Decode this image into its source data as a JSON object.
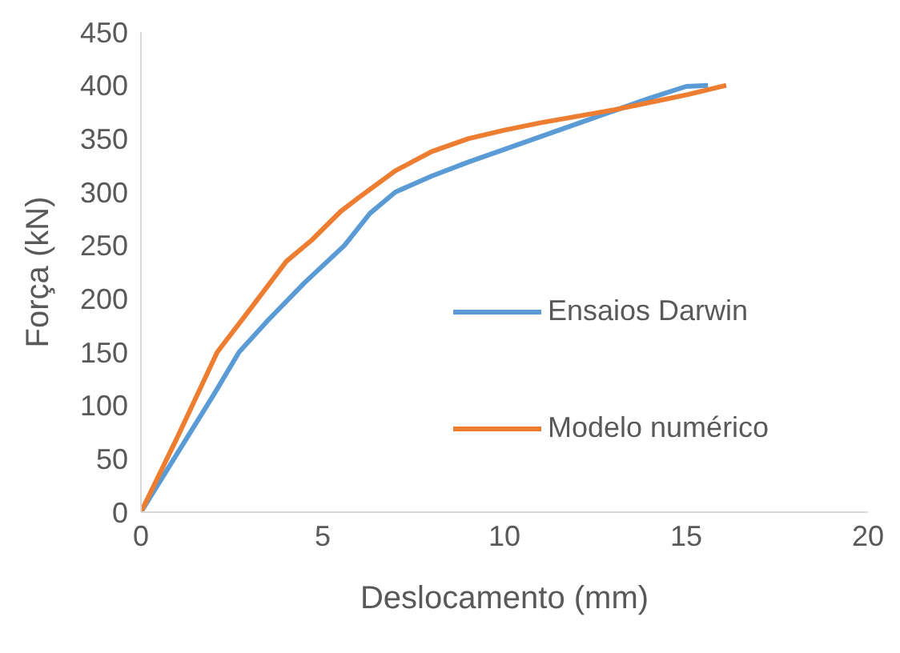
{
  "chart_data": {
    "type": "line",
    "xlabel": "Deslocamento (mm)",
    "ylabel": "Força (kN)",
    "xlim": [
      0,
      20
    ],
    "xticks": [
      0,
      5,
      10,
      15,
      20
    ],
    "ylim": [
      0,
      450
    ],
    "yticks": [
      0,
      50,
      100,
      150,
      200,
      250,
      300,
      350,
      400,
      450
    ],
    "grid": false,
    "legend": "right",
    "marker": "none",
    "line_style": "solid",
    "series": [
      {
        "name": "Ensaios Darwin",
        "color": "#5b9bd5",
        "x": [
          0,
          1,
          2,
          2.7,
          3.5,
          4.5,
          5.6,
          6.3,
          7,
          8,
          9,
          10,
          11,
          12,
          13,
          14,
          15,
          15.6
        ],
        "values": [
          0,
          55,
          110,
          150,
          180,
          215,
          250,
          280,
          300,
          315,
          328,
          340,
          352,
          364,
          376,
          388,
          399,
          400
        ]
      },
      {
        "name": "Modelo numérico",
        "color": "#ed7d31",
        "x": [
          0,
          1,
          2.1,
          3,
          4,
          4.7,
          5.5,
          6,
          7,
          8,
          9,
          10,
          11,
          12,
          13,
          14,
          15,
          16.1
        ],
        "values": [
          0,
          70,
          150,
          190,
          235,
          255,
          282,
          295,
          320,
          338,
          350,
          358,
          365,
          371,
          377,
          384,
          391,
          400
        ]
      }
    ]
  }
}
